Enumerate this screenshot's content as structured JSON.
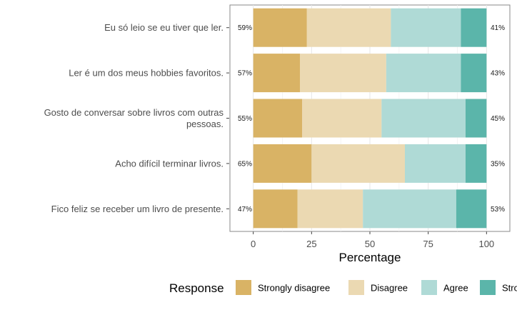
{
  "chart_data": {
    "type": "bar",
    "orientation": "horizontal",
    "stacked": true,
    "xlabel": "Percentage",
    "ylabel": "",
    "xlim": [
      -10,
      110
    ],
    "xticks": [
      0,
      25,
      50,
      75,
      100
    ],
    "grid": true,
    "legend_title": "Response",
    "legend_position": "bottom",
    "categories": [
      "Eu só leio se eu tiver que ler.",
      "Ler é um dos meus hobbies favoritos.",
      "Gosto de conversar sobre livros com outras pessoas.",
      "Acho difícil terminar livros.",
      "Fico feliz se receber um livro de presente."
    ],
    "category_lines": [
      [
        "Eu só leio se eu tiver que ler."
      ],
      [
        "Ler é um dos meus hobbies favoritos."
      ],
      [
        "Gosto de conversar sobre livros com outras",
        "pessoas."
      ],
      [
        "Acho difícil terminar livros."
      ],
      [
        "Fico feliz se receber um livro de presente."
      ]
    ],
    "series": [
      {
        "name": "Strongly disagree",
        "color": "#d9b365",
        "values": [
          23,
          20,
          21,
          25,
          19
        ]
      },
      {
        "name": "Disagree",
        "color": "#ebd9b2",
        "values": [
          36,
          37,
          34,
          40,
          28
        ]
      },
      {
        "name": "Agree",
        "color": "#afdad6",
        "values": [
          30,
          32,
          36,
          26,
          40
        ]
      },
      {
        "name": "Strongly agree",
        "color": "#5bb5aa",
        "values": [
          11,
          11,
          9,
          9,
          13
        ]
      }
    ],
    "left_labels": [
      "59%",
      "57%",
      "55%",
      "65%",
      "47%"
    ],
    "right_labels": [
      "41%",
      "43%",
      "45%",
      "35%",
      "53%"
    ]
  }
}
